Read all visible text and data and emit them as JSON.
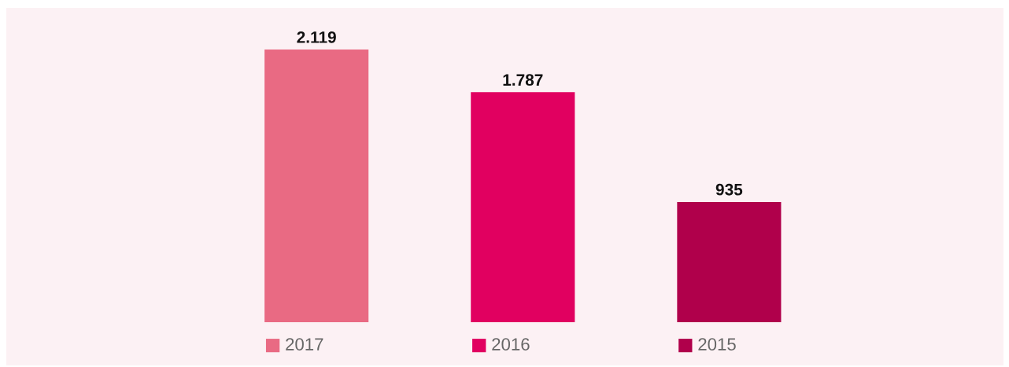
{
  "chart_data": {
    "type": "bar",
    "categories": [
      "2017",
      "2016",
      "2015"
    ],
    "values": [
      2119,
      1787,
      935
    ],
    "value_labels": [
      "2.119",
      "1.787",
      "935"
    ],
    "colors": [
      "#e96a83",
      "#e10060",
      "#b0004b"
    ]
  }
}
